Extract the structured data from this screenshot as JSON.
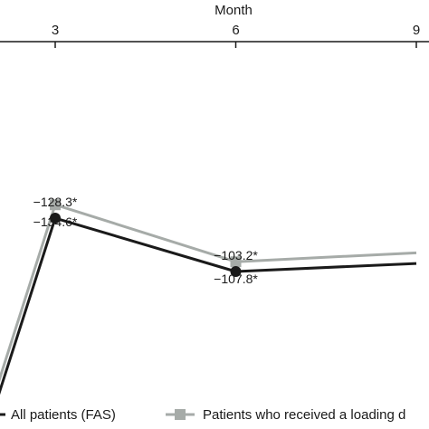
{
  "chart_data": {
    "type": "line",
    "xlabel": "Month",
    "x_tick_labels": [
      "3",
      "6",
      "9"
    ],
    "x_ticks": [
      3,
      6,
      9
    ],
    "series": [
      {
        "name": "All patients (FAS)",
        "color": "#1a1a1a",
        "marker": "circle",
        "points": [
          {
            "x": 2,
            "y": -40,
            "label": ""
          },
          {
            "x": 3,
            "y": -128.3,
            "label": "−128.3*"
          },
          {
            "x": 6,
            "y": -103.2,
            "label": "−103.2*"
          },
          {
            "x": 9,
            "y": -107,
            "label": ""
          }
        ]
      },
      {
        "name": "Patients who received a loading d",
        "color": "#a6aba8",
        "marker": "square",
        "points": [
          {
            "x": 2,
            "y": -46,
            "label": ""
          },
          {
            "x": 3,
            "y": -134.6,
            "label": "−134.6*"
          },
          {
            "x": 6,
            "y": -107.8,
            "label": "−107.8*"
          },
          {
            "x": 9,
            "y": -112,
            "label": ""
          }
        ]
      }
    ],
    "legend_position": "bottom"
  }
}
